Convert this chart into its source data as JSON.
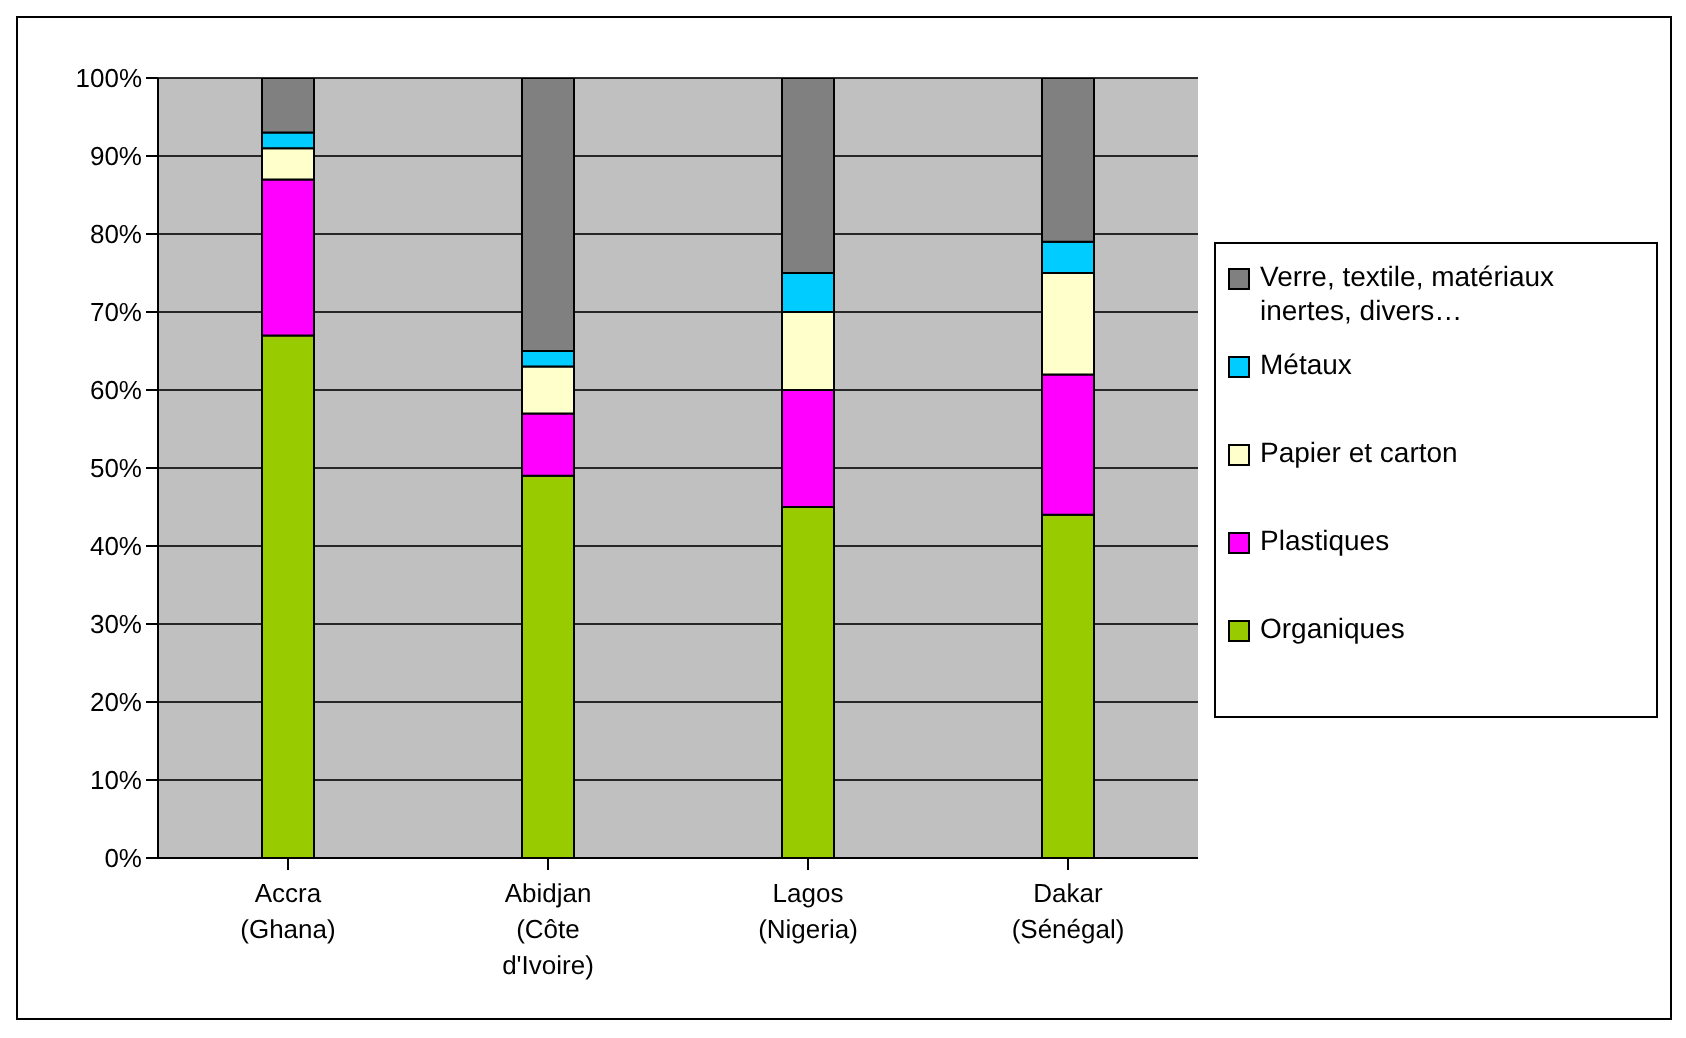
{
  "chart_data": {
    "type": "bar",
    "stacked": true,
    "categories": [
      "Accra\n(Ghana)",
      "Abidjan\n(Côte\nd'Ivoire)",
      "Lagos\n(Nigeria)",
      "Dakar\n(Sénégal)"
    ],
    "series": [
      {
        "name": "Organiques",
        "color": "#99cc00",
        "values": [
          67,
          49,
          45,
          44
        ]
      },
      {
        "name": "Plastiques",
        "color": "#ff00ff",
        "values": [
          20,
          8,
          15,
          18
        ]
      },
      {
        "name": "Papier et carton",
        "color": "#ffffcc",
        "values": [
          4,
          6,
          10,
          13
        ]
      },
      {
        "name": "Métaux",
        "color": "#00ccff",
        "values": [
          2,
          2,
          5,
          4
        ]
      },
      {
        "name": "Verre, textile, matériaux inertes, divers…",
        "color": "#808080",
        "values": [
          7,
          35,
          25,
          21
        ]
      }
    ],
    "ylim": [
      0,
      100
    ],
    "yticks": [
      {
        "value": 0,
        "label": "0%"
      },
      {
        "value": 10,
        "label": "10%"
      },
      {
        "value": 20,
        "label": "20%"
      },
      {
        "value": 30,
        "label": "30%"
      },
      {
        "value": 40,
        "label": "40%"
      },
      {
        "value": 50,
        "label": "50%"
      },
      {
        "value": 60,
        "label": "60%"
      },
      {
        "value": 70,
        "label": "70%"
      },
      {
        "value": 80,
        "label": "80%"
      },
      {
        "value": 90,
        "label": "90%"
      },
      {
        "value": 100,
        "label": "100%"
      }
    ],
    "grid": "y",
    "legend": "right"
  }
}
